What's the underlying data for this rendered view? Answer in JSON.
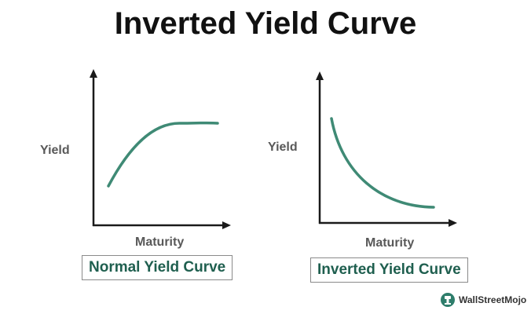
{
  "title": "Inverted Yield Curve",
  "colors": {
    "curve": "#3f8a75",
    "axis": "#1a1a1a",
    "caption_text": "#1f5f4f",
    "axis_label": "#595959"
  },
  "diagrams": [
    {
      "name": "normal",
      "ylabel": "Yield",
      "xlabel": "Maturity",
      "caption": "Normal Yield Curve",
      "shape": "rising-then-flattening"
    },
    {
      "name": "inverted",
      "ylabel": "Yield",
      "xlabel": "Maturity",
      "caption": "Inverted Yield Curve",
      "shape": "falling-convex"
    }
  ],
  "brand": {
    "name": "WallStreetMojo",
    "icon": "wallstreetmojo-logo-icon"
  }
}
